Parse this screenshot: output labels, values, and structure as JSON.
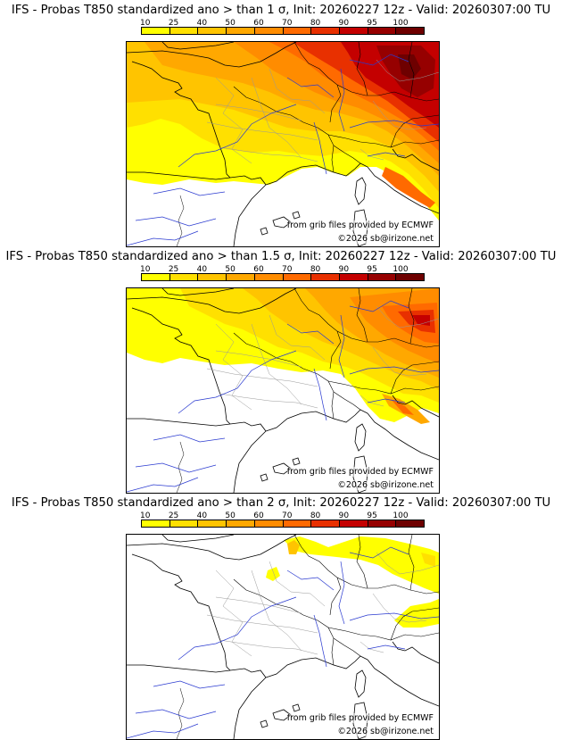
{
  "colorbar": {
    "ticks": [
      "10",
      "25",
      "40",
      "50",
      "60",
      "70",
      "80",
      "90",
      "95",
      "100"
    ],
    "colors": [
      "#ffff00",
      "#ffe000",
      "#ffc400",
      "#ffa800",
      "#ff8c00",
      "#ff6a00",
      "#e83000",
      "#c40000",
      "#960000",
      "#6e0000"
    ]
  },
  "panels": [
    {
      "title": "IFS - Probas T850  standardized ano > than 1 σ, Init: 20260227 12z - Valid: 20260307:00 TU",
      "provider_credit": "from grib files provided by ECMWF",
      "copyright": "©2026 sb@irizone.net"
    },
    {
      "title": "IFS - Probas T850  standardized ano > than 1.5 σ, Init: 20260227 12z - Valid: 20260307:00 TU",
      "provider_credit": "from grib files provided by ECMWF",
      "copyright": "©2026 sb@irizone.net"
    },
    {
      "title": "IFS - Probas T850  standardized ano > than 2 σ, Init: 20260227 12z - Valid: 20260307:00 TU",
      "provider_credit": "from grib files provided by ECMWF",
      "copyright": "©2026 sb@irizone.net"
    }
  ]
}
